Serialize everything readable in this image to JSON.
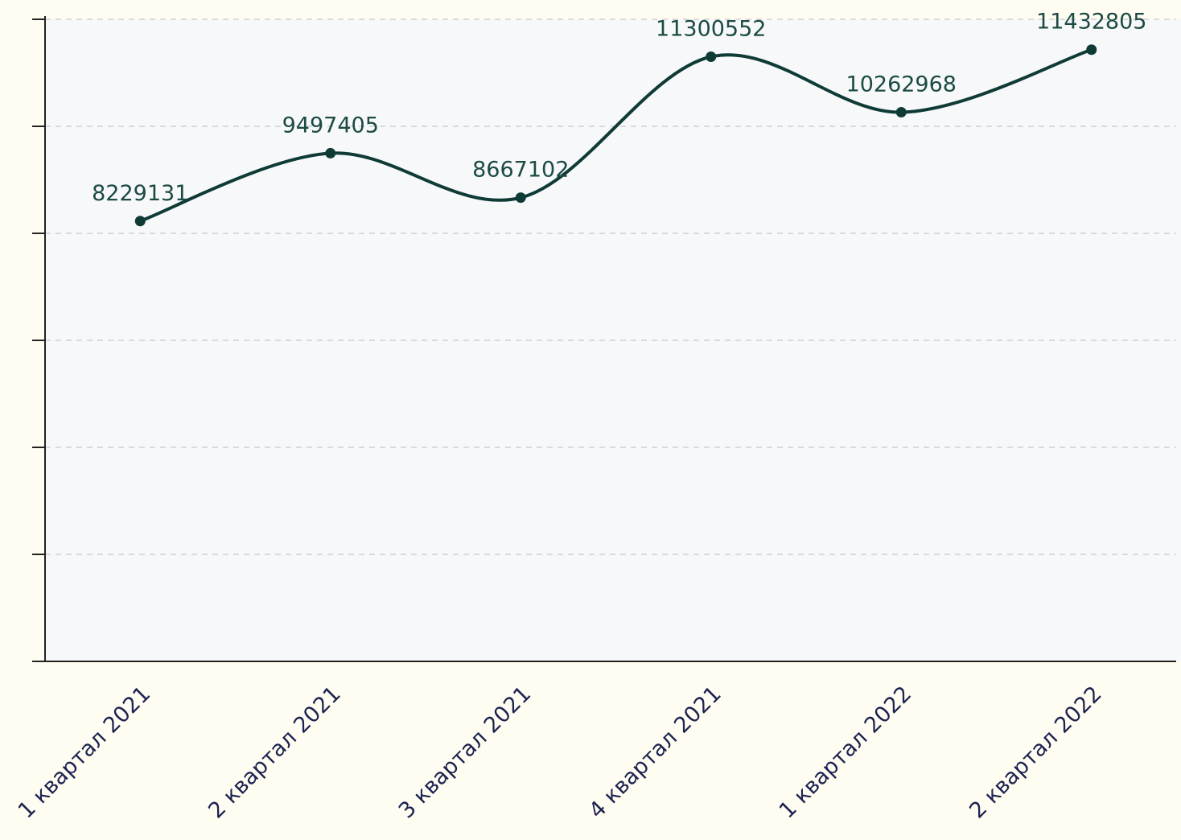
{
  "chart_data": {
    "type": "line",
    "categories": [
      "1 квартал 2021",
      "2 квартал 2021",
      "3 квартал 2021",
      "4 квартал 2021",
      "1 квартал 2022",
      "2 квартал 2022"
    ],
    "series": [
      {
        "name": null,
        "color": "#0f3b36",
        "values": [
          8229131,
          9497405,
          8667102,
          11300552,
          10262968,
          11432805
        ]
      }
    ],
    "ylim": [
      0,
      12000000
    ],
    "yticks": [
      0,
      2000000,
      4000000,
      6000000,
      8000000,
      10000000,
      12000000
    ],
    "grid": true
  }
}
